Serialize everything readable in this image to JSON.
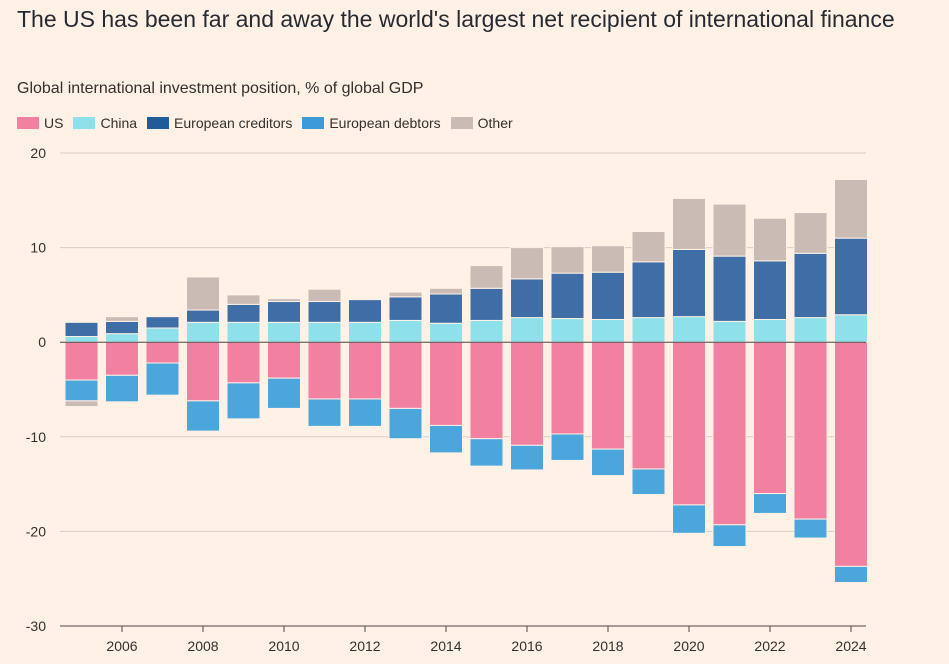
{
  "chart_data": {
    "type": "bar",
    "stacked": true,
    "title": "The US has been far and away the world's largest net recipient of international finance",
    "subtitle": "Global international investment position, % of global GDP",
    "ylim": [
      -30,
      20
    ],
    "yticks": [
      20,
      10,
      0,
      -10,
      -20,
      -30
    ],
    "ytick_labels": [
      "20",
      "10",
      "0",
      "-10",
      "-20",
      "-30"
    ],
    "categories": [
      2005,
      2006,
      2007,
      2008,
      2009,
      2010,
      2011,
      2012,
      2013,
      2014,
      2015,
      2016,
      2017,
      2018,
      2019,
      2020,
      2021,
      2022,
      2023,
      2024
    ],
    "xtick_labels": [
      "2006",
      "2008",
      "2010",
      "2012",
      "2014",
      "2016",
      "2018",
      "2020",
      "2022",
      "2024"
    ],
    "series": [
      {
        "name": "US",
        "color": "#f280a1",
        "values": [
          -4.0,
          -3.5,
          -2.2,
          -6.2,
          -4.3,
          -3.8,
          -6.0,
          -6.0,
          -7.0,
          -8.8,
          -10.2,
          -10.9,
          -9.7,
          -11.3,
          -13.4,
          -17.2,
          -19.3,
          -16.0,
          -18.7,
          -23.7
        ]
      },
      {
        "name": "China",
        "color": "#8ee0ea",
        "values": [
          0.6,
          0.9,
          1.5,
          2.1,
          2.1,
          2.1,
          2.1,
          2.1,
          2.3,
          2.0,
          2.3,
          2.6,
          2.5,
          2.4,
          2.6,
          2.7,
          2.2,
          2.4,
          2.6,
          2.9
        ]
      },
      {
        "name": "European creditors",
        "color": "#3f6ea6",
        "values": [
          1.5,
          1.3,
          1.2,
          1.3,
          1.9,
          2.2,
          2.2,
          2.4,
          2.5,
          3.1,
          3.4,
          4.1,
          4.8,
          5.0,
          5.9,
          7.1,
          6.9,
          6.2,
          6.8,
          8.1
        ]
      },
      {
        "name": "European debtors",
        "color": "#4ba6dc",
        "values": [
          -2.2,
          -2.8,
          -3.4,
          -3.2,
          -3.8,
          -3.2,
          -2.9,
          -2.9,
          -3.2,
          -2.9,
          -2.9,
          -2.6,
          -2.8,
          -2.8,
          -2.7,
          -3.0,
          -2.3,
          -2.1,
          -2.0,
          -1.7
        ]
      },
      {
        "name": "Other",
        "color": "#cbbbb5",
        "pos": [
          0,
          0.5,
          0,
          3.5,
          1.0,
          0.3,
          1.3,
          0,
          0.5,
          0.6,
          2.4,
          3.3,
          2.8,
          2.8,
          3.2,
          5.4,
          5.5,
          4.5,
          4.3,
          6.2
        ],
        "neg": [
          -0.6,
          0,
          0,
          0,
          0,
          0,
          0,
          0,
          0,
          0,
          0,
          0,
          0,
          0,
          0,
          0,
          0,
          0,
          0,
          0
        ]
      }
    ],
    "legend": [
      "US",
      "China",
      "European creditors",
      "European debtors",
      "Other"
    ]
  },
  "colors": {
    "background": "#fff1e5",
    "grid": "#d9cdc3",
    "zero_line": "#4d4845"
  }
}
